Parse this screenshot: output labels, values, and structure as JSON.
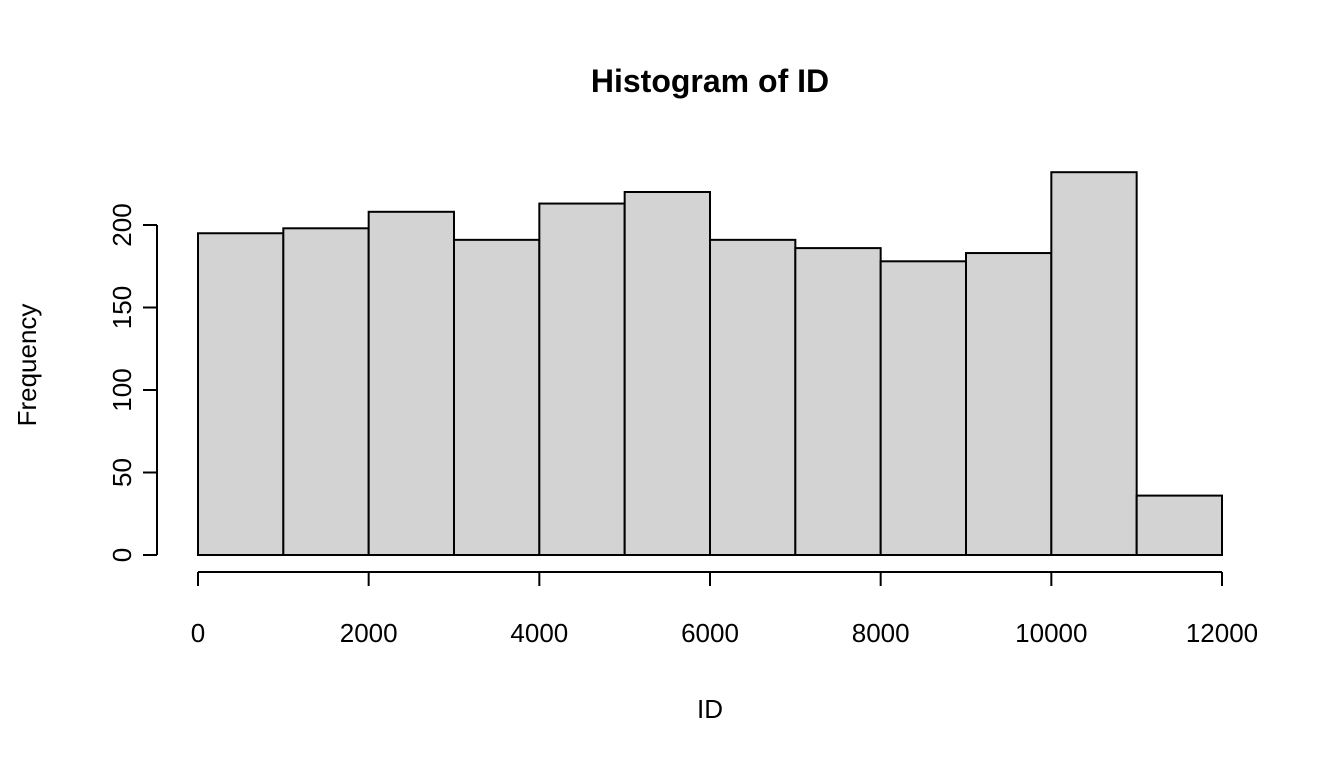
{
  "chart_data": {
    "type": "bar",
    "title": "Histogram of ID",
    "xlabel": "ID",
    "ylabel": "Frequency",
    "bin_edges": [
      0,
      1000,
      2000,
      3000,
      4000,
      5000,
      6000,
      7000,
      8000,
      9000,
      10000,
      11000,
      12000
    ],
    "values": [
      195,
      198,
      208,
      191,
      213,
      220,
      191,
      186,
      178,
      183,
      232,
      36
    ],
    "xlim": [
      0,
      12000
    ],
    "ylim": [
      0,
      200
    ],
    "x_ticks": [
      0,
      2000,
      4000,
      6000,
      8000,
      10000,
      12000
    ],
    "y_ticks": [
      0,
      50,
      100,
      150,
      200
    ],
    "bar_fill": "#d3d3d3",
    "bar_stroke": "#000000",
    "grid": false,
    "legend": "none"
  }
}
